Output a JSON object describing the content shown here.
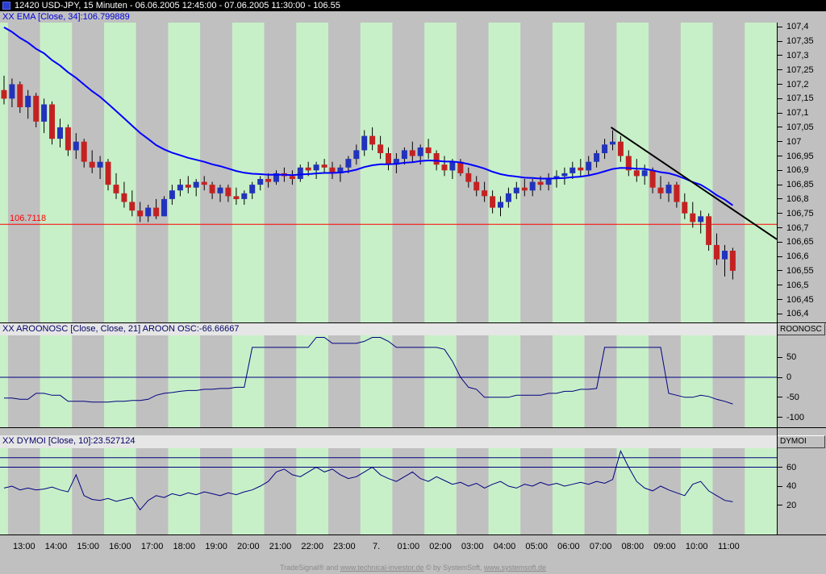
{
  "window": {
    "title": "12420  USD-JPY, 15 Minuten - 06.06.2005 12:45:00 - 07.06.2005 11:30:00 - 106.55"
  },
  "panels": {
    "price": {
      "indicator_label": "XX EMA [Close, 34]:106.799889"
    },
    "aroon": {
      "indicator_label": "XX AROONOSC [Close, Close, 21] AROON OSC:-66.66667",
      "badge": "ROONOSC"
    },
    "dymoi": {
      "indicator_label": "XX DYMOI [Close, 10]:23.527124",
      "badge": "DYMOI"
    }
  },
  "footer": {
    "prefix": "TradeSignal® and ",
    "link1": "www.technical-investor.de",
    "mid": " © by SystemSoft, ",
    "link2": "www.systemsoft.de"
  },
  "chart_data": {
    "type": "candlestick",
    "title": "USD-JPY, 15 Minuten",
    "period_shown": "06.06.2005 12:45:00 - 07.06.2005 11:30:00",
    "last_price": 106.55,
    "bars": 92,
    "slots": 97,
    "price_axis": {
      "labels": [
        "107,4",
        "107,35",
        "107,3",
        "107,25",
        "107,2",
        "107,15",
        "107,1",
        "107,05",
        "107",
        "106,95",
        "106,9",
        "106,85",
        "106,8",
        "106,75",
        "106,7",
        "106,65",
        "106,6",
        "106,55",
        "106,5",
        "106,45",
        "106,4"
      ],
      "ylim": [
        106.37,
        107.415
      ],
      "tick_step": 0.05
    },
    "time_axis": {
      "labels": [
        "13:00",
        "14:00",
        "15:00",
        "16:00",
        "17:00",
        "18:00",
        "19:00",
        "20:00",
        "21:00",
        "22:00",
        "23:00",
        "7.",
        "01:00",
        "02:00",
        "03:00",
        "04:00",
        "05:00",
        "06:00",
        "07:00",
        "08:00",
        "09:00",
        "10:00",
        "11:00"
      ],
      "first_label_bar_index": 1,
      "bars_per_label": 4
    },
    "candles": [
      [
        107.18,
        107.23,
        107.13,
        107.15
      ],
      [
        107.15,
        107.22,
        107.12,
        107.2
      ],
      [
        107.2,
        107.21,
        107.1,
        107.12
      ],
      [
        107.12,
        107.18,
        107.08,
        107.16
      ],
      [
        107.16,
        107.17,
        107.05,
        107.07
      ],
      [
        107.07,
        107.15,
        107.03,
        107.13
      ],
      [
        107.13,
        107.14,
        106.99,
        107.01
      ],
      [
        107.01,
        107.08,
        106.98,
        107.05
      ],
      [
        107.05,
        107.06,
        106.95,
        106.97
      ],
      [
        106.97,
        107.03,
        106.94,
        107.0
      ],
      [
        107.0,
        107.01,
        106.91,
        106.93
      ],
      [
        106.93,
        106.97,
        106.89,
        106.91
      ],
      [
        106.91,
        106.95,
        106.87,
        106.93
      ],
      [
        106.93,
        106.94,
        106.83,
        106.85
      ],
      [
        106.85,
        106.89,
        106.8,
        106.82
      ],
      [
        106.82,
        106.86,
        106.77,
        106.79
      ],
      [
        106.79,
        106.83,
        106.74,
        106.76
      ],
      [
        106.76,
        106.79,
        106.72,
        106.74
      ],
      [
        106.74,
        106.78,
        106.72,
        106.77
      ],
      [
        106.77,
        106.8,
        106.73,
        106.74
      ],
      [
        106.74,
        106.81,
        106.74,
        106.8
      ],
      [
        106.8,
        106.85,
        106.78,
        106.83
      ],
      [
        106.83,
        106.87,
        106.81,
        106.85
      ],
      [
        106.85,
        106.88,
        106.82,
        106.84
      ],
      [
        106.84,
        106.87,
        106.81,
        106.86
      ],
      [
        106.86,
        106.88,
        106.83,
        106.85
      ],
      [
        106.85,
        106.86,
        106.8,
        106.82
      ],
      [
        106.82,
        106.85,
        106.79,
        106.84
      ],
      [
        106.84,
        106.85,
        106.79,
        106.81
      ],
      [
        106.81,
        106.84,
        106.78,
        106.8
      ],
      [
        106.8,
        106.83,
        106.78,
        106.82
      ],
      [
        106.82,
        106.86,
        106.8,
        106.85
      ],
      [
        106.85,
        106.88,
        106.83,
        106.87
      ],
      [
        106.87,
        106.89,
        106.84,
        106.86
      ],
      [
        106.86,
        106.9,
        106.85,
        106.89
      ],
      [
        106.89,
        106.91,
        106.86,
        106.88
      ],
      [
        106.88,
        106.9,
        106.85,
        106.87
      ],
      [
        106.87,
        106.92,
        106.86,
        106.91
      ],
      [
        106.91,
        106.93,
        106.88,
        106.9
      ],
      [
        106.9,
        106.93,
        106.87,
        106.92
      ],
      [
        106.92,
        106.94,
        106.89,
        106.91
      ],
      [
        106.91,
        106.93,
        106.87,
        106.89
      ],
      [
        106.89,
        106.92,
        106.86,
        106.91
      ],
      [
        106.91,
        106.95,
        106.89,
        106.94
      ],
      [
        106.94,
        106.99,
        106.92,
        106.97
      ],
      [
        106.97,
        107.04,
        106.95,
        107.02
      ],
      [
        107.02,
        107.05,
        106.97,
        106.99
      ],
      [
        106.99,
        107.02,
        106.94,
        106.96
      ],
      [
        106.96,
        106.98,
        106.9,
        106.92
      ],
      [
        106.92,
        106.96,
        106.89,
        106.94
      ],
      [
        106.94,
        106.98,
        106.92,
        106.97
      ],
      [
        106.97,
        107.0,
        106.93,
        106.95
      ],
      [
        106.95,
        106.99,
        106.92,
        106.98
      ],
      [
        106.98,
        107.01,
        106.94,
        106.96
      ],
      [
        106.96,
        106.97,
        106.9,
        106.92
      ],
      [
        106.92,
        106.95,
        106.88,
        106.9
      ],
      [
        106.9,
        106.94,
        106.87,
        106.93
      ],
      [
        106.93,
        106.94,
        106.88,
        106.89
      ],
      [
        106.89,
        106.91,
        106.84,
        106.86
      ],
      [
        106.86,
        106.88,
        106.81,
        106.83
      ],
      [
        106.83,
        106.86,
        106.79,
        106.81
      ],
      [
        106.81,
        106.83,
        106.75,
        106.77
      ],
      [
        106.77,
        106.81,
        106.74,
        106.79
      ],
      [
        106.79,
        106.84,
        106.77,
        106.82
      ],
      [
        106.82,
        106.86,
        106.8,
        106.84
      ],
      [
        106.84,
        106.87,
        106.81,
        106.83
      ],
      [
        106.83,
        106.87,
        106.81,
        106.86
      ],
      [
        106.86,
        106.88,
        106.83,
        106.85
      ],
      [
        106.85,
        106.89,
        106.83,
        106.87
      ],
      [
        106.87,
        106.9,
        106.84,
        106.88
      ],
      [
        106.88,
        106.91,
        106.85,
        106.89
      ],
      [
        106.89,
        106.93,
        106.87,
        106.91
      ],
      [
        106.91,
        106.94,
        106.88,
        106.9
      ],
      [
        106.9,
        106.95,
        106.88,
        106.93
      ],
      [
        106.93,
        106.97,
        106.91,
        106.96
      ],
      [
        106.96,
        107.01,
        106.94,
        106.99
      ],
      [
        106.99,
        107.04,
        106.97,
        107.0
      ],
      [
        107.0,
        107.02,
        106.93,
        106.95
      ],
      [
        106.95,
        106.97,
        106.88,
        106.9
      ],
      [
        106.9,
        106.94,
        106.86,
        106.88
      ],
      [
        106.88,
        106.92,
        106.85,
        106.9
      ],
      [
        106.9,
        106.91,
        106.82,
        106.84
      ],
      [
        106.84,
        106.88,
        106.8,
        106.82
      ],
      [
        106.82,
        106.86,
        106.79,
        106.85
      ],
      [
        106.85,
        106.86,
        106.77,
        106.79
      ],
      [
        106.79,
        106.82,
        106.73,
        106.75
      ],
      [
        106.75,
        106.79,
        106.7,
        106.72
      ],
      [
        106.72,
        106.76,
        106.68,
        106.74
      ],
      [
        106.74,
        106.75,
        106.62,
        106.64
      ],
      [
        106.64,
        106.68,
        106.57,
        106.59
      ],
      [
        106.59,
        106.64,
        106.53,
        106.62
      ],
      [
        106.62,
        106.63,
        106.52,
        106.55
      ]
    ],
    "ema": {
      "period": 34,
      "value": 106.799889,
      "render_seed": 107.42,
      "render_alpha": 0.08
    },
    "red_line": {
      "value": 106.7118,
      "label": "106.7118"
    },
    "trend_line": {
      "from_bar": 75.8,
      "from_price": 107.05,
      "to_bar": 96.6,
      "to_price": 106.66
    },
    "aroon": {
      "name": "AROON OSC",
      "params": "[Close, Close, 21]",
      "value": -66.66667,
      "ylim": [
        -125,
        105
      ],
      "ticks": [
        "50",
        "0",
        "-50",
        "-100"
      ],
      "zero_line": 0,
      "values": [
        -52,
        -52,
        -55,
        -55,
        -40,
        -40,
        -45,
        -45,
        -60,
        -60,
        -60,
        -62,
        -62,
        -62,
        -60,
        -60,
        -58,
        -58,
        -55,
        -45,
        -40,
        -38,
        -35,
        -33,
        -33,
        -30,
        -30,
        -28,
        -28,
        -25,
        -25,
        75,
        75,
        75,
        75,
        75,
        75,
        75,
        75,
        100,
        100,
        85,
        85,
        85,
        85,
        90,
        100,
        100,
        90,
        75,
        75,
        75,
        75,
        75,
        75,
        70,
        40,
        0,
        -25,
        -30,
        -50,
        -50,
        -50,
        -50,
        -45,
        -45,
        -45,
        -45,
        -40,
        -40,
        -35,
        -35,
        -30,
        -30,
        -28,
        75,
        75,
        75,
        75,
        75,
        75,
        75,
        75,
        -40,
        -45,
        -50,
        -50,
        -45,
        -48,
        -55,
        -60,
        -66.67
      ]
    },
    "dymoi": {
      "name": "DYMOI",
      "params": "[Close, 10]",
      "value": 23.527124,
      "ylim": [
        -11,
        80
      ],
      "ticks": [
        "60",
        "40",
        "20"
      ],
      "level_lines": [
        70,
        60
      ],
      "values": [
        38,
        40,
        36,
        38,
        36,
        37,
        39,
        36,
        34,
        52,
        30,
        26,
        25,
        27,
        24,
        26,
        28,
        15,
        25,
        30,
        28,
        32,
        30,
        33,
        31,
        34,
        32,
        30,
        33,
        31,
        34,
        36,
        40,
        45,
        55,
        58,
        52,
        50,
        55,
        60,
        55,
        58,
        52,
        48,
        50,
        55,
        60,
        52,
        48,
        45,
        50,
        55,
        48,
        45,
        50,
        46,
        42,
        44,
        40,
        43,
        38,
        42,
        45,
        40,
        38,
        42,
        40,
        44,
        41,
        43,
        40,
        42,
        44,
        42,
        45,
        43,
        47,
        77,
        60,
        45,
        38,
        35,
        40,
        36,
        33,
        30,
        42,
        45,
        35,
        30,
        25,
        23.53
      ]
    },
    "colors": {
      "up": "#2233bb",
      "down": "#c42222",
      "wick": "#000000",
      "ema": "#0000ff",
      "indicator": "#000080",
      "stripe_green": "#c8f0c8",
      "stripe_gray": "#c0c0c0",
      "red_line": "#ff0000",
      "trend": "#000000"
    }
  }
}
